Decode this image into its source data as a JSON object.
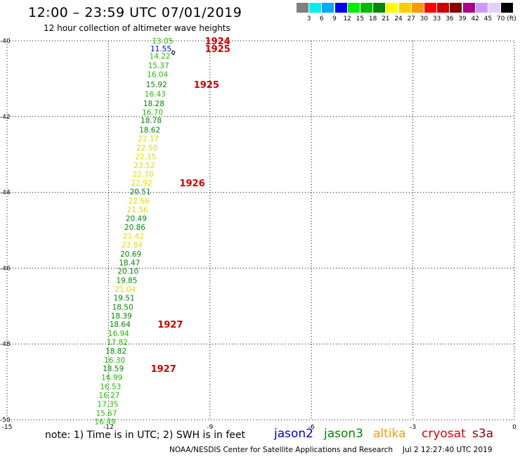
{
  "header": {
    "title": "12:00 – 23:59 UTC 07/01/2019",
    "subtitle": "12 hour collection of altimeter wave heights"
  },
  "colorbar": {
    "colors": [
      "#808080",
      "#00eeee",
      "#00aaff",
      "#0000ff",
      "#00ee00",
      "#00bb00",
      "#008800",
      "#ffff00",
      "#ffcc00",
      "#ff9900",
      "#ff0000",
      "#cc0000",
      "#880000",
      "#aa0088",
      "#cc99ff",
      "#e0d0ff",
      "#000000"
    ],
    "labels": [
      "3",
      "6",
      "9",
      "12",
      "15",
      "18",
      "21",
      "24",
      "27",
      "30",
      "33",
      "36",
      "39",
      "42",
      "45",
      "70"
    ],
    "unit": "(ft)"
  },
  "map": {
    "x_ticks": [
      "-15",
      "-12",
      "-9",
      "-6",
      "-3",
      "0"
    ],
    "y_ticks": [
      "-40",
      "-42",
      "-44",
      "-46",
      "-48",
      "-50"
    ],
    "lon_range": [
      -15,
      0
    ],
    "lat_range": [
      -50,
      -40
    ],
    "grid": "dotted",
    "track_colors": {
      "yellow": "#dddd00",
      "green1": "#22bb00",
      "green2": "#008800",
      "blue": "#0000ff"
    },
    "track": [
      {
        "lat": -40.0,
        "lon": -10.4,
        "v": "13.05",
        "c": "green1"
      },
      {
        "lat": -40.2,
        "lon": -10.45,
        "v": "11.55",
        "c": "blue"
      },
      {
        "lat": -40.4,
        "lon": -10.48,
        "v": "14.22",
        "c": "green1"
      },
      {
        "lat": -40.65,
        "lon": -10.52,
        "v": "15.37",
        "c": "green1"
      },
      {
        "lat": -40.88,
        "lon": -10.55,
        "v": "16.04",
        "c": "green1"
      },
      {
        "lat": -41.15,
        "lon": -10.58,
        "v": "15.92",
        "c": "green2"
      },
      {
        "lat": -41.4,
        "lon": -10.62,
        "v": "16.43",
        "c": "green1"
      },
      {
        "lat": -41.65,
        "lon": -10.66,
        "v": "18.28",
        "c": "green2"
      },
      {
        "lat": -41.88,
        "lon": -10.7,
        "v": "16.70",
        "c": "green1"
      },
      {
        "lat": -42.1,
        "lon": -10.74,
        "v": "18.78",
        "c": "green2"
      },
      {
        "lat": -42.35,
        "lon": -10.78,
        "v": "18.62",
        "c": "green2"
      },
      {
        "lat": -42.58,
        "lon": -10.82,
        "v": "22.17",
        "c": "yellow"
      },
      {
        "lat": -42.82,
        "lon": -10.86,
        "v": "22.50",
        "c": "yellow"
      },
      {
        "lat": -43.05,
        "lon": -10.9,
        "v": "22.15",
        "c": "yellow"
      },
      {
        "lat": -43.28,
        "lon": -10.94,
        "v": "23.52",
        "c": "yellow"
      },
      {
        "lat": -43.52,
        "lon": -10.98,
        "v": "22.70",
        "c": "yellow"
      },
      {
        "lat": -43.75,
        "lon": -11.02,
        "v": "22.92",
        "c": "yellow"
      },
      {
        "lat": -43.98,
        "lon": -11.06,
        "v": "20.51",
        "c": "green2"
      },
      {
        "lat": -44.22,
        "lon": -11.1,
        "v": "22.66",
        "c": "yellow"
      },
      {
        "lat": -44.45,
        "lon": -11.14,
        "v": "21.56",
        "c": "yellow"
      },
      {
        "lat": -44.68,
        "lon": -11.18,
        "v": "20.49",
        "c": "green2"
      },
      {
        "lat": -44.92,
        "lon": -11.22,
        "v": "20.86",
        "c": "green2"
      },
      {
        "lat": -45.15,
        "lon": -11.26,
        "v": "21.42",
        "c": "yellow"
      },
      {
        "lat": -45.38,
        "lon": -11.3,
        "v": "22.84",
        "c": "yellow"
      },
      {
        "lat": -45.62,
        "lon": -11.34,
        "v": "20.69",
        "c": "green2"
      },
      {
        "lat": -45.85,
        "lon": -11.38,
        "v": "18.47",
        "c": "green2"
      },
      {
        "lat": -46.08,
        "lon": -11.42,
        "v": "20.10",
        "c": "green2"
      },
      {
        "lat": -46.32,
        "lon": -11.46,
        "v": "19.85",
        "c": "green2"
      },
      {
        "lat": -46.55,
        "lon": -11.5,
        "v": "21.04",
        "c": "yellow"
      },
      {
        "lat": -46.78,
        "lon": -11.54,
        "v": "19.51",
        "c": "green2"
      },
      {
        "lat": -47.02,
        "lon": -11.58,
        "v": "18.50",
        "c": "green2"
      },
      {
        "lat": -47.25,
        "lon": -11.62,
        "v": "18.39",
        "c": "green2"
      },
      {
        "lat": -47.48,
        "lon": -11.66,
        "v": "18.64",
        "c": "green2"
      },
      {
        "lat": -47.72,
        "lon": -11.7,
        "v": "16.94",
        "c": "green1"
      },
      {
        "lat": -47.95,
        "lon": -11.74,
        "v": "17.82",
        "c": "green1"
      },
      {
        "lat": -48.18,
        "lon": -11.78,
        "v": "18.82",
        "c": "green2"
      },
      {
        "lat": -48.42,
        "lon": -11.82,
        "v": "16.30",
        "c": "green1"
      },
      {
        "lat": -48.65,
        "lon": -11.86,
        "v": "18.59",
        "c": "green2"
      },
      {
        "lat": -48.88,
        "lon": -11.9,
        "v": "16.99",
        "c": "green1"
      },
      {
        "lat": -49.12,
        "lon": -11.94,
        "v": "16.53",
        "c": "green1"
      },
      {
        "lat": -49.35,
        "lon": -11.98,
        "v": "16.27",
        "c": "green1"
      },
      {
        "lat": -49.58,
        "lon": -12.02,
        "v": "17.35",
        "c": "green1"
      },
      {
        "lat": -49.82,
        "lon": -12.06,
        "v": "15.67",
        "c": "green1"
      },
      {
        "lat": -50.05,
        "lon": -12.1,
        "v": "16.49",
        "c": "green1"
      }
    ],
    "time_labels": [
      {
        "lat": -40.0,
        "lon": -9.15,
        "text": "1924"
      },
      {
        "lat": -40.2,
        "lon": -9.15,
        "text": "1925"
      },
      {
        "lat": -41.15,
        "lon": -9.48,
        "text": "1925"
      },
      {
        "lat": -43.75,
        "lon": -9.9,
        "text": "1926"
      },
      {
        "lat": -47.48,
        "lon": -10.55,
        "text": "1927"
      },
      {
        "lat": -48.65,
        "lon": -10.75,
        "text": "1927"
      }
    ],
    "time_label_color": "#cc0000"
  },
  "notes": {
    "text": "note:  1) Time is in UTC; 2) SWH is in feet"
  },
  "satellites": [
    {
      "name": "jason2",
      "color": "#0000cc"
    },
    {
      "name": "jason3",
      "color": "#008800"
    },
    {
      "name": "altika",
      "color": "#ff9900"
    },
    {
      "name": "cryosat",
      "color": "#dd0000"
    },
    {
      "name": "s3a",
      "color": "#880000"
    }
  ],
  "footer": {
    "credit": "NOAA/NESDIS Center for Satellite Applications and Research",
    "timestamp": "Jul  2 12:27:40 UTC 2019"
  }
}
